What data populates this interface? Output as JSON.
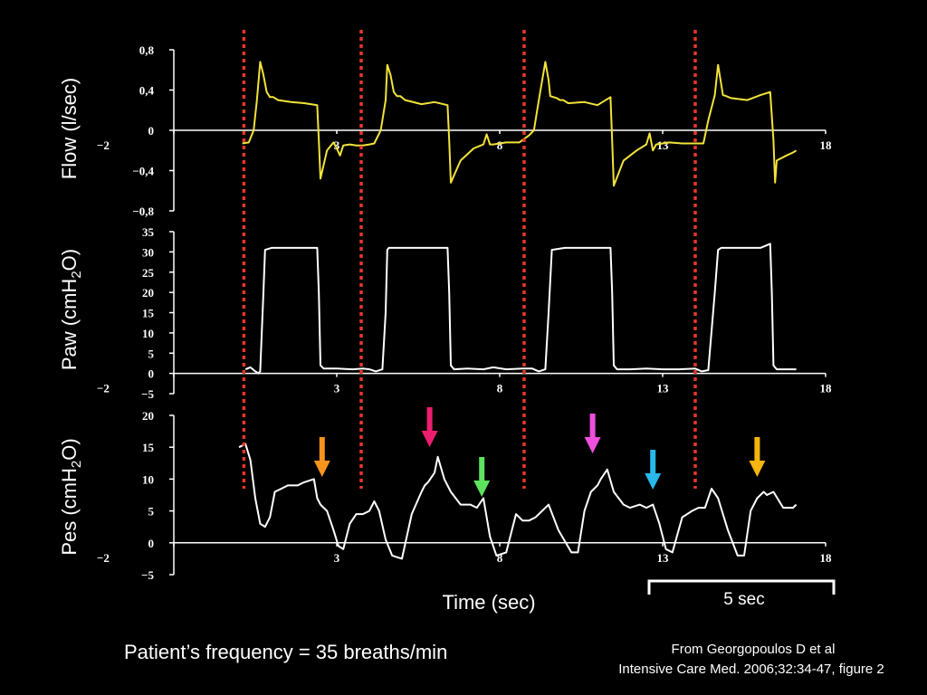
{
  "page": {
    "background": "#000000",
    "time_axis_label": "Time (sec)",
    "scale_bar_label": "5 sec",
    "footer_left": "Patient’s frequency = 35 breaths/min",
    "citation_line1": "From Georgopoulos D et al",
    "citation_line2": "Intensive Care Med. 2006;32:34-47, figure 2"
  },
  "colors": {
    "flow_trace": "#f2e33a",
    "paw_trace": "#ffffff",
    "pes_trace": "#ffffff",
    "axis": "#ffffff",
    "dotted_marker": "#e8372a",
    "arrow_orange": "#f7941d",
    "arrow_magenta": "#ec1e6e",
    "arrow_green": "#5ee35e",
    "arrow_pink": "#ee4fdc",
    "arrow_cyan": "#29b8ea",
    "arrow_gold": "#f6b40e"
  },
  "chart_data": [
    {
      "type": "line",
      "id": "flow",
      "ylabel": "Flow (l/sec)",
      "xlim": [
        -2,
        18
      ],
      "ylim": [
        -0.8,
        0.8
      ],
      "x_ticks": [
        "-2",
        "3",
        "8",
        "13",
        "18"
      ],
      "y_ticks": [
        "0,8",
        "0,4",
        "0",
        "-0,4",
        "-0,8"
      ],
      "series": [
        {
          "x": [
            0.1,
            0.3,
            0.45,
            0.55,
            0.65,
            0.75,
            0.85,
            0.95,
            1.05,
            1.2,
            1.6,
            2.0,
            2.4,
            2.45,
            2.5,
            2.7,
            2.9,
            3.0,
            3.1,
            3.2,
            3.4,
            3.6,
            3.8,
            4.0,
            4.15,
            4.35,
            4.5,
            4.55,
            4.65,
            4.75,
            4.85,
            4.95,
            5.1,
            5.6,
            6.0,
            6.4,
            6.45,
            6.5,
            6.8,
            7.2,
            7.5,
            7.6,
            7.7,
            7.8,
            8.2,
            8.6,
            8.9,
            9.05,
            9.2,
            9.4,
            9.5,
            9.55,
            9.65,
            9.75,
            9.85,
            9.95,
            10.1,
            10.6,
            11.0,
            11.4,
            11.45,
            11.5,
            11.8,
            12.2,
            12.5,
            12.6,
            12.7,
            12.8,
            13.2,
            13.6,
            14.0,
            14.25,
            14.4,
            14.6,
            14.7,
            14.8,
            14.85,
            14.95,
            15.1,
            15.6,
            16.0,
            16.3,
            16.4,
            16.45,
            16.5,
            16.8,
            17.0,
            17.1
          ],
          "y": [
            -0.13,
            -0.12,
            0.0,
            0.3,
            0.68,
            0.55,
            0.38,
            0.33,
            0.33,
            0.3,
            0.28,
            0.27,
            0.25,
            -0.1,
            -0.48,
            -0.2,
            -0.12,
            -0.18,
            -0.25,
            -0.15,
            -0.14,
            -0.15,
            -0.15,
            -0.14,
            -0.13,
            0.0,
            0.3,
            0.65,
            0.55,
            0.38,
            0.34,
            0.34,
            0.3,
            0.26,
            0.28,
            0.25,
            -0.1,
            -0.52,
            -0.3,
            -0.18,
            -0.14,
            -0.04,
            -0.14,
            -0.14,
            -0.12,
            -0.12,
            -0.05,
            0.0,
            0.3,
            0.68,
            0.5,
            0.34,
            0.33,
            0.32,
            0.3,
            0.3,
            0.27,
            0.28,
            0.25,
            0.33,
            -0.1,
            -0.55,
            -0.3,
            -0.2,
            -0.14,
            -0.03,
            -0.2,
            -0.14,
            -0.12,
            -0.13,
            -0.13,
            -0.13,
            0.1,
            0.35,
            0.65,
            0.45,
            0.35,
            0.34,
            0.32,
            0.3,
            0.35,
            0.38,
            -0.1,
            -0.52,
            -0.3,
            -0.25,
            -0.22,
            -0.2
          ]
        }
      ]
    },
    {
      "type": "line",
      "id": "paw",
      "ylabel": "Paw (cmH2O)",
      "xlim": [
        -2,
        18
      ],
      "ylim": [
        -5,
        35
      ],
      "x_ticks": [
        "-2",
        "3",
        "8",
        "13",
        "18"
      ],
      "y_ticks": [
        "35",
        "30",
        "25",
        "20",
        "15",
        "10",
        "5",
        "0",
        "-5"
      ],
      "series": [
        {
          "x": [
            0.2,
            0.35,
            0.5,
            0.6,
            0.65,
            0.75,
            0.8,
            1.0,
            1.5,
            2.0,
            2.4,
            2.45,
            2.5,
            2.6,
            3.0,
            3.5,
            3.8,
            4.0,
            4.2,
            4.4,
            4.5,
            4.55,
            4.6,
            5.0,
            5.5,
            6.0,
            6.4,
            6.45,
            6.5,
            6.6,
            7.0,
            7.5,
            7.8,
            8.2,
            8.7,
            9.0,
            9.2,
            9.4,
            9.5,
            9.6,
            10.0,
            10.5,
            11.0,
            11.4,
            11.45,
            11.5,
            11.6,
            12.0,
            12.5,
            13.0,
            13.5,
            14.0,
            14.2,
            14.4,
            14.6,
            14.7,
            14.8,
            15.0,
            15.5,
            16.0,
            16.3,
            16.35,
            16.4,
            16.5,
            17.0,
            17.1
          ],
          "y": [
            1.0,
            1.5,
            0.5,
            0.0,
            0.5,
            20,
            30.5,
            31,
            31,
            31,
            31,
            20,
            2,
            1.2,
            1.2,
            1.0,
            1.2,
            1.0,
            0.5,
            1.0,
            15,
            30.5,
            31,
            31,
            31,
            31,
            31,
            20,
            2,
            1.0,
            1.2,
            1.0,
            1.5,
            1.0,
            1.2,
            1.2,
            0.5,
            1.0,
            15,
            30.5,
            31,
            31,
            31,
            31,
            20,
            2,
            1.0,
            1.0,
            1.2,
            1.0,
            1.0,
            1.2,
            0.5,
            0.8,
            20,
            30.5,
            31,
            31,
            31,
            31,
            32,
            20,
            2,
            1.0,
            1.0,
            1.0
          ]
        }
      ]
    },
    {
      "type": "line",
      "id": "pes",
      "ylabel": "Pes (cmH2O)",
      "xlim": [
        -2,
        18
      ],
      "ylim": [
        -5,
        20
      ],
      "x_ticks": [
        "-2",
        "3",
        "8",
        "13",
        "18"
      ],
      "y_ticks": [
        "20",
        "15",
        "10",
        "5",
        "0",
        "-5"
      ],
      "series": [
        {
          "x": [
            0.0,
            0.2,
            0.35,
            0.5,
            0.65,
            0.8,
            0.95,
            1.1,
            1.3,
            1.5,
            1.8,
            2.0,
            2.3,
            2.4,
            2.5,
            2.7,
            2.9,
            3.05,
            3.2,
            3.4,
            3.6,
            3.8,
            4.0,
            4.15,
            4.3,
            4.5,
            4.7,
            5.0,
            5.3,
            5.6,
            5.7,
            5.8,
            6.0,
            6.1,
            6.3,
            6.5,
            6.8,
            7.1,
            7.3,
            7.5,
            7.7,
            7.9,
            8.2,
            8.5,
            8.7,
            8.9,
            9.1,
            9.3,
            9.5,
            9.8,
            10.2,
            10.4,
            10.6,
            10.8,
            11.0,
            11.1,
            11.3,
            11.5,
            11.8,
            12.0,
            12.3,
            12.5,
            12.7,
            12.9,
            13.1,
            13.3,
            13.6,
            13.9,
            14.1,
            14.3,
            14.5,
            14.7,
            15.0,
            15.3,
            15.5,
            15.7,
            15.9,
            16.1,
            16.2,
            16.4,
            16.7,
            17.0,
            17.1
          ],
          "y": [
            15,
            15.5,
            13,
            7,
            3,
            2.5,
            4,
            8,
            8.5,
            9,
            9,
            9.5,
            10,
            7,
            6,
            5,
            2,
            -0.5,
            -1,
            3,
            4.5,
            4.5,
            5,
            6.5,
            5,
            0.5,
            -2,
            -2.5,
            4.5,
            8,
            9,
            9.5,
            11,
            13.5,
            10,
            8,
            6,
            6,
            5.5,
            7,
            1,
            -2,
            -1.5,
            4.5,
            3.5,
            3.5,
            4,
            5,
            6,
            2,
            -1.5,
            -1.5,
            5,
            8,
            9,
            10,
            11.5,
            8,
            6,
            5.5,
            6,
            5.5,
            6,
            3,
            -1,
            -1.5,
            4,
            5,
            5.5,
            5.5,
            8.5,
            7,
            2,
            -2,
            -2,
            5,
            7,
            8,
            7.5,
            8,
            5.5,
            5.5,
            6
          ]
        }
      ]
    }
  ],
  "markers": {
    "dotted_lines_x": [
      0.15,
      3.75,
      8.75,
      14.0
    ],
    "arrows": [
      {
        "id": "arrow-orange",
        "x": 2.55,
        "panel": "pes",
        "color": "arrow_orange"
      },
      {
        "id": "arrow-magenta",
        "x": 5.85,
        "panel": "pes",
        "color": "arrow_magenta"
      },
      {
        "id": "arrow-green",
        "x": 7.45,
        "panel": "pes",
        "color": "arrow_green"
      },
      {
        "id": "arrow-pink",
        "x": 10.85,
        "panel": "pes",
        "color": "arrow_pink"
      },
      {
        "id": "arrow-cyan",
        "x": 12.7,
        "panel": "pes",
        "color": "arrow_cyan"
      },
      {
        "id": "arrow-gold",
        "x": 15.9,
        "panel": "pes",
        "color": "arrow_gold"
      }
    ]
  }
}
